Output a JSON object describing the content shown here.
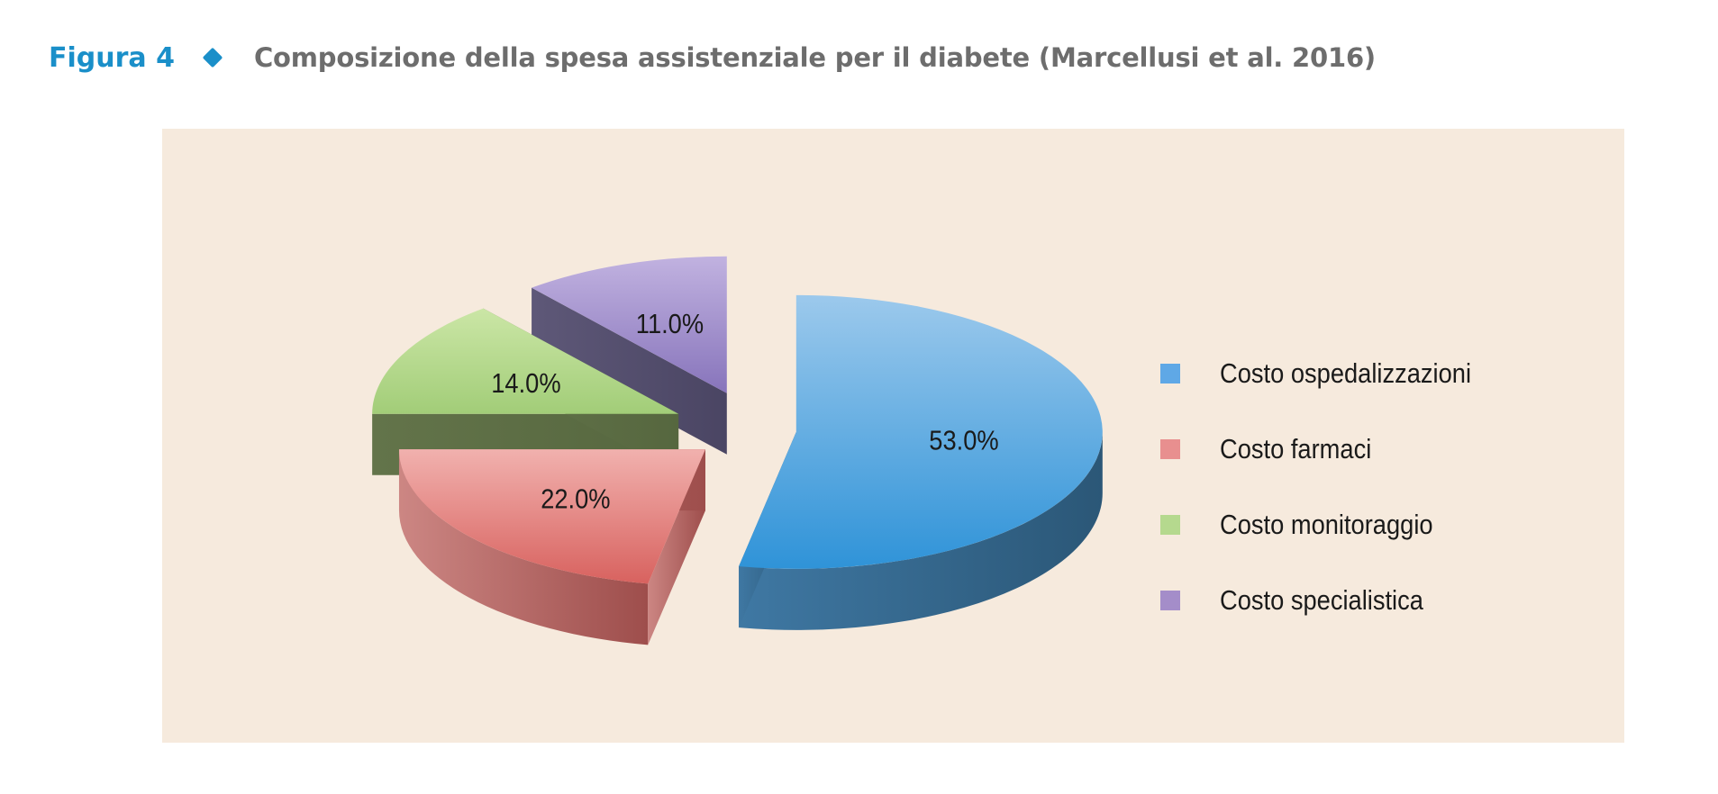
{
  "figure": {
    "label": "Figura 4",
    "title": "Composizione della spesa assistenziale per il diabete (Marcellusi et al. 2016)"
  },
  "chart_data": {
    "type": "pie",
    "style": "3d-exploded",
    "title": "Composizione della spesa assistenziale per il diabete (Marcellusi et al. 2016)",
    "legend_position": "right",
    "slices": [
      {
        "name": "Costo ospedalizzazioni",
        "value": 53.0,
        "label": "53.0%",
        "color": "#5fa8e6"
      },
      {
        "name": "Costo farmaci",
        "value": 22.0,
        "label": "22.0%",
        "color": "#e88f8f"
      },
      {
        "name": "Costo monitoraggio",
        "value": 14.0,
        "label": "14.0%",
        "color": "#b5d98e"
      },
      {
        "name": "Costo specialistica",
        "value": 11.0,
        "label": "11.0%",
        "color": "#a48dc9"
      }
    ]
  },
  "colors": {
    "accent": "#1a8fc9",
    "title_text": "#6d6d6d",
    "panel_background": "#f6eadd"
  }
}
